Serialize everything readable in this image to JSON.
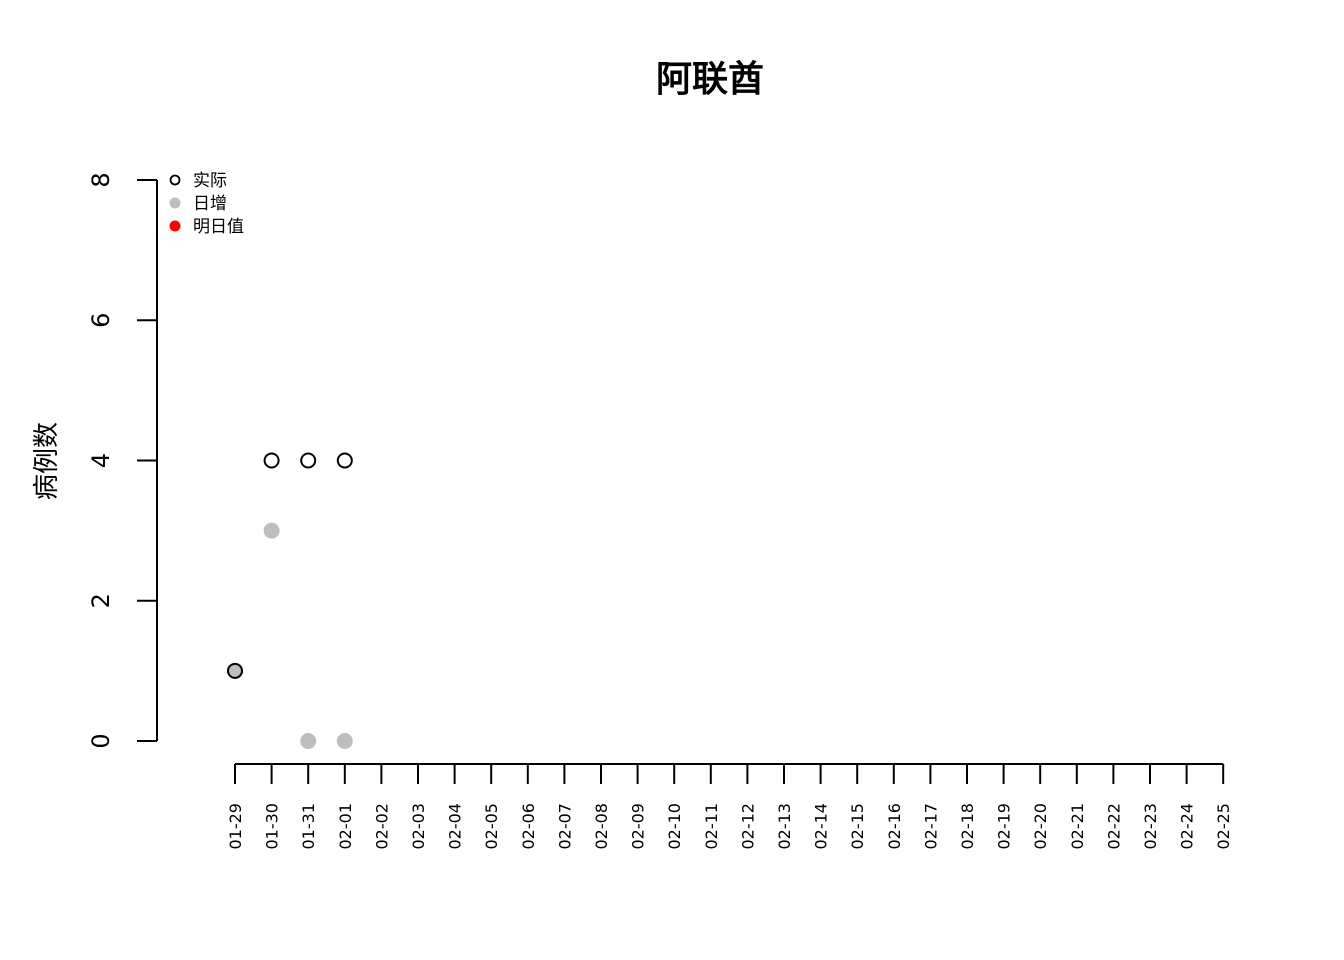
{
  "chart_data": {
    "type": "scatter",
    "title": "阿联酋",
    "xlabel": "",
    "ylabel": "病例数",
    "ylim": [
      0,
      8
    ],
    "yticks": [
      0,
      2,
      4,
      6,
      8
    ],
    "x_categories": [
      "01-29",
      "01-30",
      "01-31",
      "02-01",
      "02-02",
      "02-03",
      "02-04",
      "02-05",
      "02-06",
      "02-07",
      "02-08",
      "02-09",
      "02-10",
      "02-11",
      "02-12",
      "02-13",
      "02-14",
      "02-15",
      "02-16",
      "02-17",
      "02-18",
      "02-19",
      "02-20",
      "02-21",
      "02-22",
      "02-23",
      "02-24",
      "02-25"
    ],
    "legend_position": "top-left",
    "grid": false,
    "series": [
      {
        "name": "实际",
        "marker": "open-circle",
        "color": "#000000",
        "points": [
          {
            "x": "01-29",
            "y": 1
          },
          {
            "x": "01-30",
            "y": 4
          },
          {
            "x": "01-31",
            "y": 4
          },
          {
            "x": "02-01",
            "y": 4
          }
        ]
      },
      {
        "name": "日增",
        "marker": "filled-circle",
        "color": "#BEBEBE",
        "points": [
          {
            "x": "01-29",
            "y": 1
          },
          {
            "x": "01-30",
            "y": 3
          },
          {
            "x": "01-31",
            "y": 0
          },
          {
            "x": "02-01",
            "y": 0
          }
        ]
      },
      {
        "name": "明日值",
        "marker": "filled-circle",
        "color": "#FF0000",
        "points": []
      }
    ]
  }
}
